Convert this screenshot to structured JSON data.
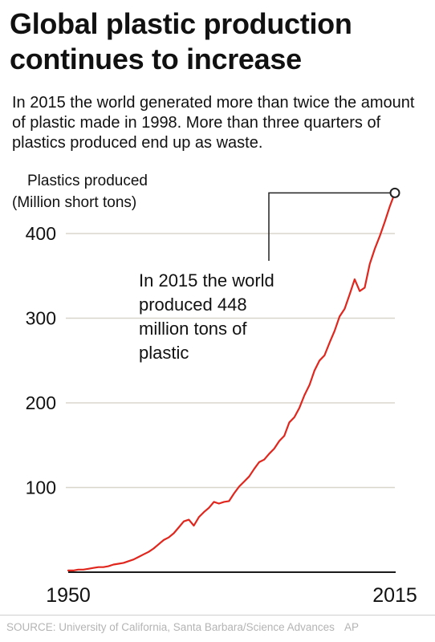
{
  "title": "Global plastic production continues to increase",
  "subtitle": "In 2015 the world generated more than twice the amount of plastic made in 1998. More than three quarters of plastics produced end up as waste.",
  "source": "SOURCE: University of California, Santa Barbara/Science Advances",
  "credit": "AP",
  "colors": {
    "line": "#e0261d",
    "grid": "#d8d5cb",
    "text": "#111111",
    "annotation": "#222222"
  },
  "chart_data": {
    "type": "line",
    "ylabel_line1": "Plastics produced",
    "ylabel_line2": "(Million short tons)",
    "xlim": [
      1950,
      2015
    ],
    "ylim": [
      0,
      448
    ],
    "x_ticks": [
      1950,
      2015
    ],
    "x_tick_labels": [
      "1950",
      "2015"
    ],
    "y_ticks": [
      100,
      200,
      300,
      400
    ],
    "y_tick_labels": [
      "100",
      "200",
      "300",
      "400"
    ],
    "grid": true,
    "annotation": {
      "lines": [
        "In 2015 the world",
        "produced 448",
        "million tons of",
        "plastic"
      ],
      "x": 2015,
      "y": 448
    },
    "series": [
      {
        "x": [
          1950,
          1951,
          1952,
          1953,
          1954,
          1955,
          1956,
          1957,
          1958,
          1959,
          1960,
          1961,
          1962,
          1963,
          1964,
          1965,
          1966,
          1967,
          1968,
          1969,
          1970,
          1971,
          1972,
          1973,
          1974,
          1975,
          1976,
          1977,
          1978,
          1979,
          1980,
          1981,
          1982,
          1983,
          1984,
          1985,
          1986,
          1987,
          1988,
          1989,
          1990,
          1991,
          1992,
          1993,
          1994,
          1995,
          1996,
          1997,
          1998,
          1999,
          2000,
          2001,
          2002,
          2003,
          2004,
          2005,
          2006,
          2007,
          2008,
          2009,
          2010,
          2011,
          2012,
          2013,
          2014,
          2015
        ],
        "values": [
          2,
          2,
          3,
          3,
          4,
          5,
          6,
          6,
          7,
          9,
          10,
          11,
          13,
          15,
          18,
          21,
          24,
          28,
          33,
          38,
          41,
          46,
          53,
          60,
          62,
          55,
          65,
          71,
          76,
          83,
          81,
          83,
          84,
          93,
          101,
          107,
          113,
          122,
          130,
          133,
          140,
          146,
          155,
          161,
          177,
          183,
          194,
          209,
          221,
          238,
          250,
          256,
          271,
          285,
          302,
          311,
          328,
          346,
          332,
          336,
          364,
          382,
          397,
          414,
          432,
          448
        ]
      }
    ]
  }
}
